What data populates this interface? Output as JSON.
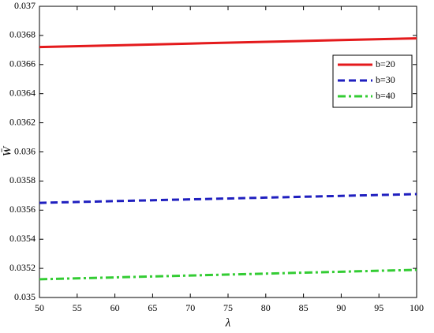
{
  "chart_data": {
    "type": "line",
    "x_label": "λ",
    "y_label": "W̄",
    "x": [
      50,
      60,
      70,
      80,
      90,
      100
    ],
    "series": [
      {
        "name": "b=20",
        "color": "#e41a1c",
        "style": "solid",
        "values": [
          0.03672,
          0.036732,
          0.036744,
          0.036756,
          0.036768,
          0.03678
        ]
      },
      {
        "name": "b=30",
        "color": "#1f1fbf",
        "style": "dashed",
        "values": [
          0.03565,
          0.035662,
          0.035674,
          0.035686,
          0.035698,
          0.03571
        ]
      },
      {
        "name": "b=40",
        "color": "#33cc33",
        "style": "dashdot",
        "values": [
          0.035125,
          0.035138,
          0.035151,
          0.035164,
          0.035177,
          0.03519
        ]
      }
    ],
    "xlim": [
      50,
      100
    ],
    "xticks": [
      50,
      55,
      60,
      65,
      70,
      75,
      80,
      85,
      90,
      95,
      100
    ],
    "ylim": [
      0.035,
      0.037
    ],
    "yticks": [
      0.035,
      0.0352,
      0.0354,
      0.0356,
      0.0358,
      0.036,
      0.0362,
      0.0364,
      0.0366,
      0.0368,
      0.037
    ],
    "legend": "upper right"
  }
}
